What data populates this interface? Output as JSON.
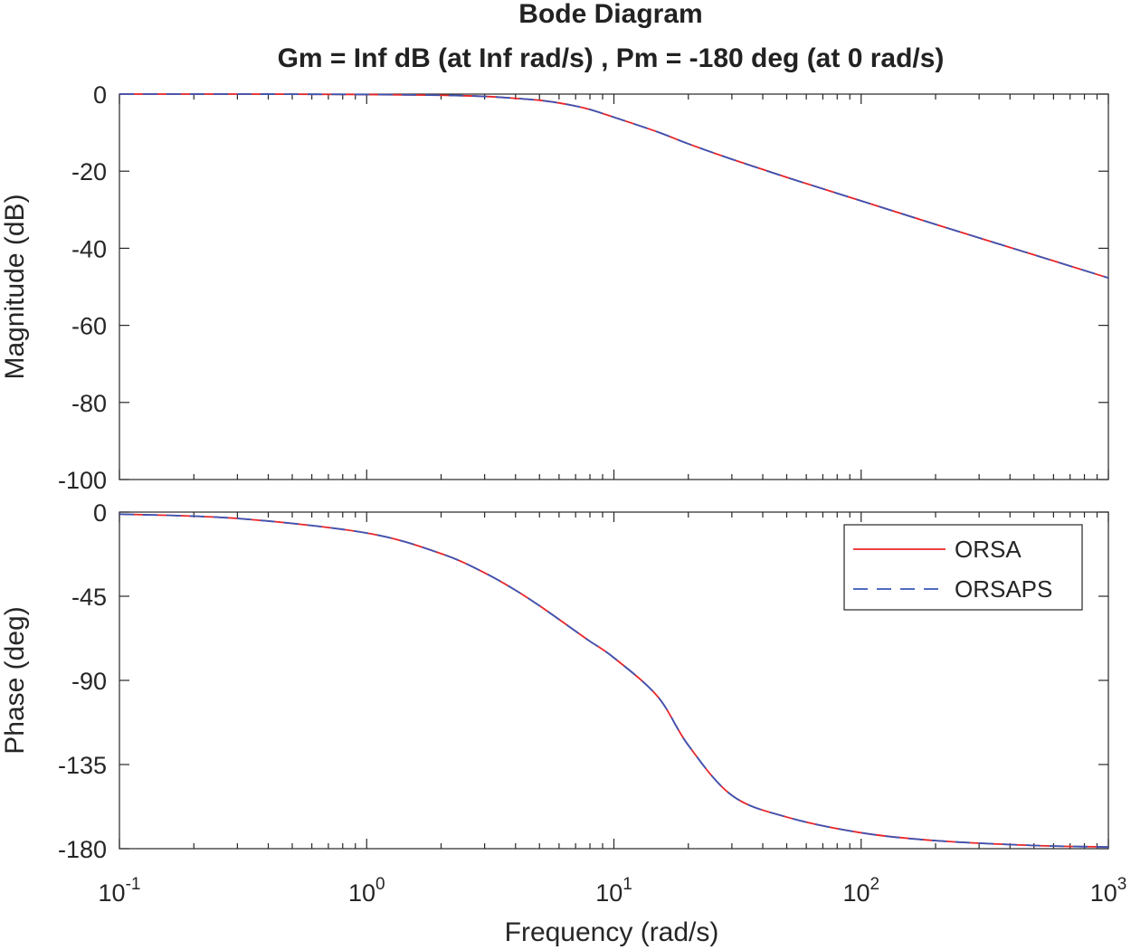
{
  "chart_data": [
    {
      "type": "line",
      "panel": "magnitude",
      "title": "Bode Diagram",
      "subtitle": "Gm = Inf dB (at Inf rad/s) ,  Pm = -180 deg (at 0 rad/s)",
      "xlabel": "Frequency  (rad/s)",
      "ylabel": "Magnitude (dB)",
      "xscale": "log",
      "xlim": [
        0.1,
        1000
      ],
      "ylim": [
        -100,
        0
      ],
      "yticks": [
        0,
        -20,
        -40,
        -60,
        -80,
        -100
      ],
      "ytick_labels": [
        "0",
        "-20",
        "-40",
        "-60",
        "-80",
        "-100"
      ],
      "series": [
        {
          "name": "ORSA",
          "color": "#e8262a",
          "style": "solid",
          "x": [
            0.1,
            0.3,
            1,
            2,
            3,
            4,
            5,
            6,
            7,
            8,
            10,
            15,
            20,
            30,
            50,
            100,
            200,
            500,
            1000
          ],
          "y": [
            0,
            0,
            -0.1,
            -0.3,
            -0.6,
            -1.1,
            -1.6,
            -2.3,
            -3.1,
            -4.0,
            -6.0,
            -9.8,
            -12.9,
            -16.9,
            -21.6,
            -27.7,
            -33.8,
            -41.7,
            -47.7
          ]
        },
        {
          "name": "ORSAPS",
          "color": "#3a55b4",
          "style": "dashed",
          "x": [
            0.1,
            0.3,
            1,
            2,
            3,
            4,
            5,
            6,
            7,
            8,
            10,
            15,
            20,
            30,
            50,
            100,
            200,
            500,
            1000
          ],
          "y": [
            0,
            0,
            -0.1,
            -0.3,
            -0.6,
            -1.1,
            -1.6,
            -2.3,
            -3.1,
            -4.0,
            -6.0,
            -9.8,
            -12.9,
            -16.9,
            -21.6,
            -27.7,
            -33.8,
            -41.7,
            -47.7
          ]
        }
      ]
    },
    {
      "type": "line",
      "panel": "phase",
      "xlabel": "Frequency  (rad/s)",
      "ylabel": "Phase (deg)",
      "xscale": "log",
      "xlim": [
        0.1,
        1000
      ],
      "ylim": [
        -180,
        0
      ],
      "yticks": [
        0,
        -45,
        -90,
        -135,
        -180
      ],
      "ytick_labels": [
        "0",
        "-45",
        "-90",
        "-135",
        "-180"
      ],
      "xtick_labels": [
        {
          "base": "10",
          "exp": "-1"
        },
        {
          "base": "10",
          "exp": "0"
        },
        {
          "base": "10",
          "exp": "1"
        },
        {
          "base": "10",
          "exp": "2"
        },
        {
          "base": "10",
          "exp": "3"
        }
      ],
      "legend": {
        "position": "top-right",
        "entries": [
          "ORSA",
          "ORSAPS"
        ]
      },
      "series": [
        {
          "name": "ORSA",
          "color": "#e8262a",
          "style": "solid",
          "x": [
            0.1,
            0.3,
            1,
            2,
            3,
            4,
            5,
            6,
            7,
            8,
            10,
            15,
            20,
            30,
            50,
            100,
            200,
            500,
            1000
          ],
          "y": [
            -1.1,
            -3.4,
            -11.2,
            -22.2,
            -32.5,
            -41.8,
            -50.1,
            -57.4,
            -63.7,
            -69.1,
            -77.9,
            -98.5,
            -124.7,
            -151.5,
            -163.1,
            -171.5,
            -175.7,
            -178.3,
            -179.1
          ]
        },
        {
          "name": "ORSAPS",
          "color": "#3a55b4",
          "style": "dashed",
          "x": [
            0.1,
            0.3,
            1,
            2,
            3,
            4,
            5,
            6,
            7,
            8,
            10,
            15,
            20,
            30,
            50,
            100,
            200,
            500,
            1000
          ],
          "y": [
            -1.1,
            -3.4,
            -11.2,
            -22.2,
            -32.5,
            -41.8,
            -50.1,
            -57.4,
            -63.7,
            -69.1,
            -77.9,
            -98.5,
            -124.7,
            -151.5,
            -163.1,
            -171.5,
            -175.7,
            -178.3,
            -179.1
          ]
        }
      ]
    }
  ]
}
